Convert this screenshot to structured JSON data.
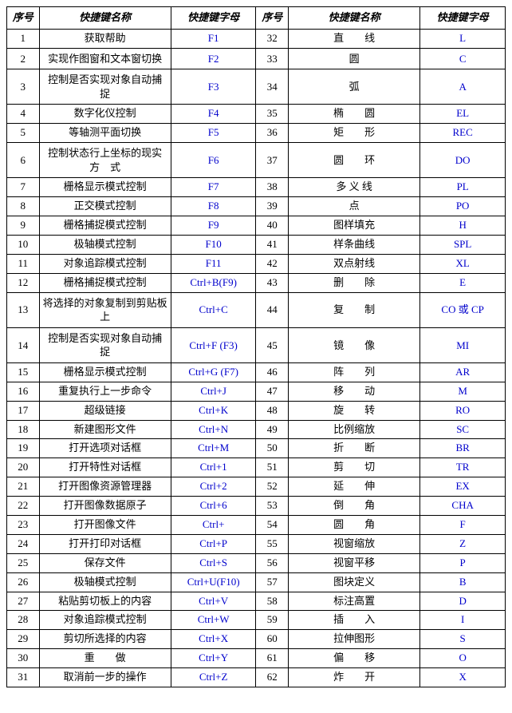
{
  "headers": {
    "seq": "序号",
    "name": "快捷键名称",
    "key": "快捷键字母"
  },
  "left": [
    {
      "seq": "1",
      "name": "获取帮助",
      "key": "F1"
    },
    {
      "seq": "2",
      "name": "实现作图窗和文本窗切换",
      "key": "F2",
      "ml": true
    },
    {
      "seq": "3",
      "name": "控制是否实现对象自动捕　　捉",
      "key": "F3",
      "ml": true
    },
    {
      "seq": "4",
      "name": "数字化仪控制",
      "key": "F4"
    },
    {
      "seq": "5",
      "name": "等轴测平面切换",
      "key": "F5"
    },
    {
      "seq": "6",
      "name": "控制状态行上坐标的现实　方　式",
      "key": "F6",
      "ml": true
    },
    {
      "seq": "7",
      "name": "栅格显示模式控制",
      "key": "F7"
    },
    {
      "seq": "8",
      "name": "正交模式控制",
      "key": "F8"
    },
    {
      "seq": "9",
      "name": "栅格捕捉模式控制",
      "key": "F9"
    },
    {
      "seq": "10",
      "name": "极轴模式控制",
      "key": "F10"
    },
    {
      "seq": "11",
      "name": "对象追踪模式控制",
      "key": "F11"
    },
    {
      "seq": "12",
      "name": "栅格捕捉模式控制",
      "key": "Ctrl+B(F9)"
    },
    {
      "seq": "13",
      "name": "将选择的对象复制到剪贴板上",
      "key": "Ctrl+C",
      "ml": true
    },
    {
      "seq": "14",
      "name": "控制是否实现对象自动捕　　捉",
      "key": "Ctrl+F (F3)",
      "ml": true
    },
    {
      "seq": "15",
      "name": "栅格显示模式控制",
      "key": "Ctrl+G (F7)"
    },
    {
      "seq": "16",
      "name": "重复执行上一步命令",
      "key": "Ctrl+J"
    },
    {
      "seq": "17",
      "name": "超级链接",
      "key": "Ctrl+K"
    },
    {
      "seq": "18",
      "name": "新建图形文件",
      "key": "Ctrl+N"
    },
    {
      "seq": "19",
      "name": "打开选项对话框",
      "key": "Ctrl+M"
    },
    {
      "seq": "20",
      "name": "打开特性对话框",
      "key": "Ctrl+1"
    },
    {
      "seq": "21",
      "name": "打开图像资源管理器",
      "key": "Ctrl+2"
    },
    {
      "seq": "22",
      "name": "打开图像数据原子",
      "key": "Ctrl+6"
    },
    {
      "seq": "23",
      "name": "打开图像文件",
      "key": "Ctrl+"
    },
    {
      "seq": "24",
      "name": "打开打印对话框",
      "key": "Ctrl+P"
    },
    {
      "seq": "25",
      "name": "保存文件",
      "key": "Ctrl+S"
    },
    {
      "seq": "26",
      "name": "极轴模式控制",
      "key": "Ctrl+U(F10)"
    },
    {
      "seq": "27",
      "name": "粘贴剪切板上的内容",
      "key": "Ctrl+V"
    },
    {
      "seq": "28",
      "name": "对象追踪模式控制",
      "key": "Ctrl+W"
    },
    {
      "seq": "29",
      "name": "剪切所选择的内容",
      "key": "Ctrl+X"
    },
    {
      "seq": "30",
      "name": "重　　做",
      "key": "Ctrl+Y"
    },
    {
      "seq": "31",
      "name": "取消前一步的操作",
      "key": "Ctrl+Z"
    }
  ],
  "right": [
    {
      "seq": "32",
      "name": "直　　线",
      "key": "L"
    },
    {
      "seq": "33",
      "name": "圆",
      "key": "C",
      "ml": true
    },
    {
      "seq": "34",
      "name": "弧",
      "key": "A",
      "ml": true
    },
    {
      "seq": "35",
      "name": "椭　　圆",
      "key": "EL"
    },
    {
      "seq": "36",
      "name": "矩　　形",
      "key": "REC"
    },
    {
      "seq": "37",
      "name": "圆　　环",
      "key": "DO",
      "ml": true
    },
    {
      "seq": "38",
      "name": "多 义 线",
      "key": "PL"
    },
    {
      "seq": "39",
      "name": "点",
      "key": "PO"
    },
    {
      "seq": "40",
      "name": "图样填充",
      "key": "H"
    },
    {
      "seq": "41",
      "name": "样条曲线",
      "key": "SPL"
    },
    {
      "seq": "42",
      "name": "双点射线",
      "key": "XL"
    },
    {
      "seq": "43",
      "name": "删　　除",
      "key": "E"
    },
    {
      "seq": "44",
      "name": "复　　制",
      "key": "CO 或 CP",
      "ml": true
    },
    {
      "seq": "45",
      "name": "镜　　像",
      "key": "MI",
      "ml": true
    },
    {
      "seq": "46",
      "name": "阵　　列",
      "key": "AR"
    },
    {
      "seq": "47",
      "name": "移　　动",
      "key": "M"
    },
    {
      "seq": "48",
      "name": "旋　　转",
      "key": "RO"
    },
    {
      "seq": "49",
      "name": "比例缩放",
      "key": "SC"
    },
    {
      "seq": "50",
      "name": "折　　断",
      "key": "BR"
    },
    {
      "seq": "51",
      "name": "剪　　切",
      "key": "TR"
    },
    {
      "seq": "52",
      "name": "延　　伸",
      "key": "EX"
    },
    {
      "seq": "53",
      "name": "倒　　角",
      "key": "CHA"
    },
    {
      "seq": "54",
      "name": "圆　　角",
      "key": "F"
    },
    {
      "seq": "55",
      "name": "视窗缩放",
      "key": "Z"
    },
    {
      "seq": "56",
      "name": "视窗平移",
      "key": "P"
    },
    {
      "seq": "57",
      "name": "图块定义",
      "key": "B"
    },
    {
      "seq": "58",
      "name": "标注高置",
      "key": "D"
    },
    {
      "seq": "59",
      "name": "插　　入",
      "key": "I"
    },
    {
      "seq": "60",
      "name": "拉伸图形",
      "key": "S"
    },
    {
      "seq": "61",
      "name": "偏　　移",
      "key": "O"
    },
    {
      "seq": "62",
      "name": "炸　　开",
      "key": "X"
    }
  ]
}
